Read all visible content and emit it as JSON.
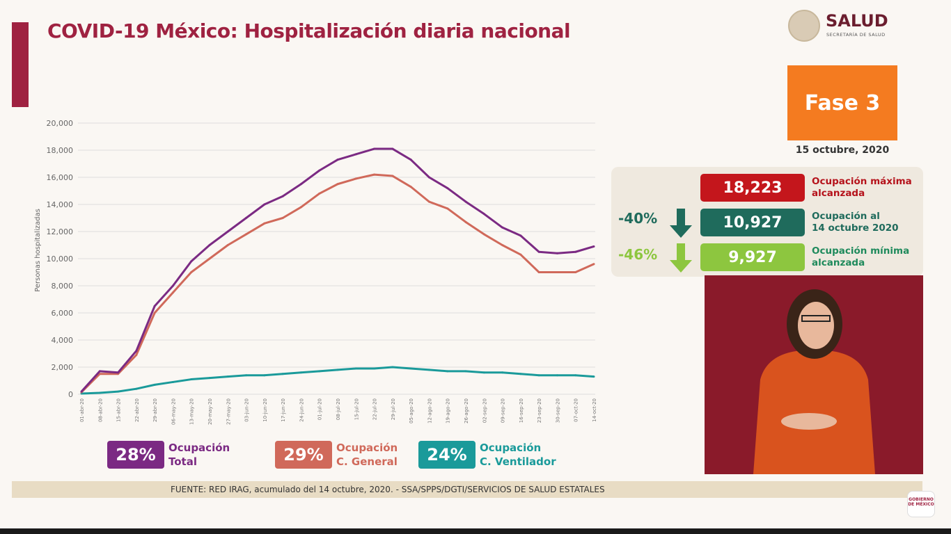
{
  "header": {
    "title": "COVID-19 México: Hospitalización diaria nacional"
  },
  "logo": {
    "name": "SALUD",
    "sub": "SECRETARÍA DE SALUD"
  },
  "phase": {
    "label": "Fase 3",
    "date": "15 octubre, 2020"
  },
  "summary": {
    "max": {
      "value": "18,223",
      "label1": "Ocupación máxima",
      "label2": "alcanzada",
      "color": "#c4161c"
    },
    "current": {
      "value": "10,927",
      "label1": "Ocupación al",
      "label2": "14 octubre 2020",
      "pct": "-40%",
      "color": "#1f6b5c"
    },
    "min": {
      "value": "9,927",
      "label1": "Ocupación mínima",
      "label2": "alcanzada",
      "pct": "-46%",
      "color": "#8dc63f"
    }
  },
  "legend": [
    {
      "pct": "28%",
      "l1": "Ocupación",
      "l2": "Total",
      "color": "#7b2a83"
    },
    {
      "pct": "29%",
      "l1": "Ocupación",
      "l2": "C. General",
      "color": "#d0695a"
    },
    {
      "pct": "24%",
      "l1": "Ocupación",
      "l2": "C. Ventilador",
      "color": "#1a9a9a"
    }
  ],
  "footer": "FUENTE: RED IRAG, acumulado del 14 octubre, 2020. -  SSA/SPPS/DGTI/SERVICIOS DE SALUD ESTATALES",
  "mx_logo": "GOBIERNO DE MÉXICO",
  "chart_data": {
    "type": "line",
    "ylabel": "Personas hospitalizadas",
    "ylim": [
      0,
      20000
    ],
    "yticks": [
      0,
      2000,
      4000,
      6000,
      8000,
      10000,
      12000,
      14000,
      16000,
      18000,
      20000
    ],
    "ytick_labels": [
      "0",
      "2,000",
      "4,000",
      "6,000",
      "8,000",
      "10,000",
      "12,000",
      "14,000",
      "16,000",
      "18,000",
      "20,000"
    ],
    "grid": true,
    "categories": [
      "01-abr-20",
      "08-abr-20",
      "15-abr-20",
      "22-abr-20",
      "29-abr-20",
      "06-may-20",
      "13-may-20",
      "20-may-20",
      "27-may-20",
      "03-jun-20",
      "10-jun-20",
      "17-jun-20",
      "24-jun-20",
      "01-jul-20",
      "08-jul-20",
      "15-jul-20",
      "22-jul-20",
      "29-jul-20",
      "05-ago-20",
      "12-ago-20",
      "19-ago-20",
      "26-ago-20",
      "02-sep-20",
      "09-sep-20",
      "16-sep-20",
      "23-sep-20",
      "30-sep-20",
      "07-oct-20",
      "14-oct-20"
    ],
    "series": [
      {
        "name": "Ocupación Total",
        "color": "#7b2a83",
        "values": [
          200,
          1700,
          1600,
          3200,
          6500,
          8000,
          9800,
          11000,
          12000,
          13000,
          14000,
          14600,
          15500,
          16500,
          17300,
          17700,
          18100,
          18100,
          17300,
          16000,
          15200,
          14200,
          13300,
          12300,
          11700,
          10500,
          10400,
          10500,
          10900
        ]
      },
      {
        "name": "Ocupación C. General",
        "color": "#d0695a",
        "values": [
          150,
          1500,
          1500,
          2900,
          6000,
          7500,
          9000,
          10000,
          11000,
          11800,
          12600,
          13000,
          13800,
          14800,
          15500,
          15900,
          16200,
          16100,
          15300,
          14200,
          13700,
          12700,
          11800,
          11000,
          10300,
          9000,
          9000,
          9000,
          9600
        ]
      },
      {
        "name": "Ocupación C. Ventilador",
        "color": "#1a9a9a",
        "values": [
          50,
          100,
          200,
          400,
          700,
          900,
          1100,
          1200,
          1300,
          1400,
          1400,
          1500,
          1600,
          1700,
          1800,
          1900,
          1900,
          2000,
          1900,
          1800,
          1700,
          1700,
          1600,
          1600,
          1500,
          1400,
          1400,
          1400,
          1300
        ]
      }
    ]
  }
}
